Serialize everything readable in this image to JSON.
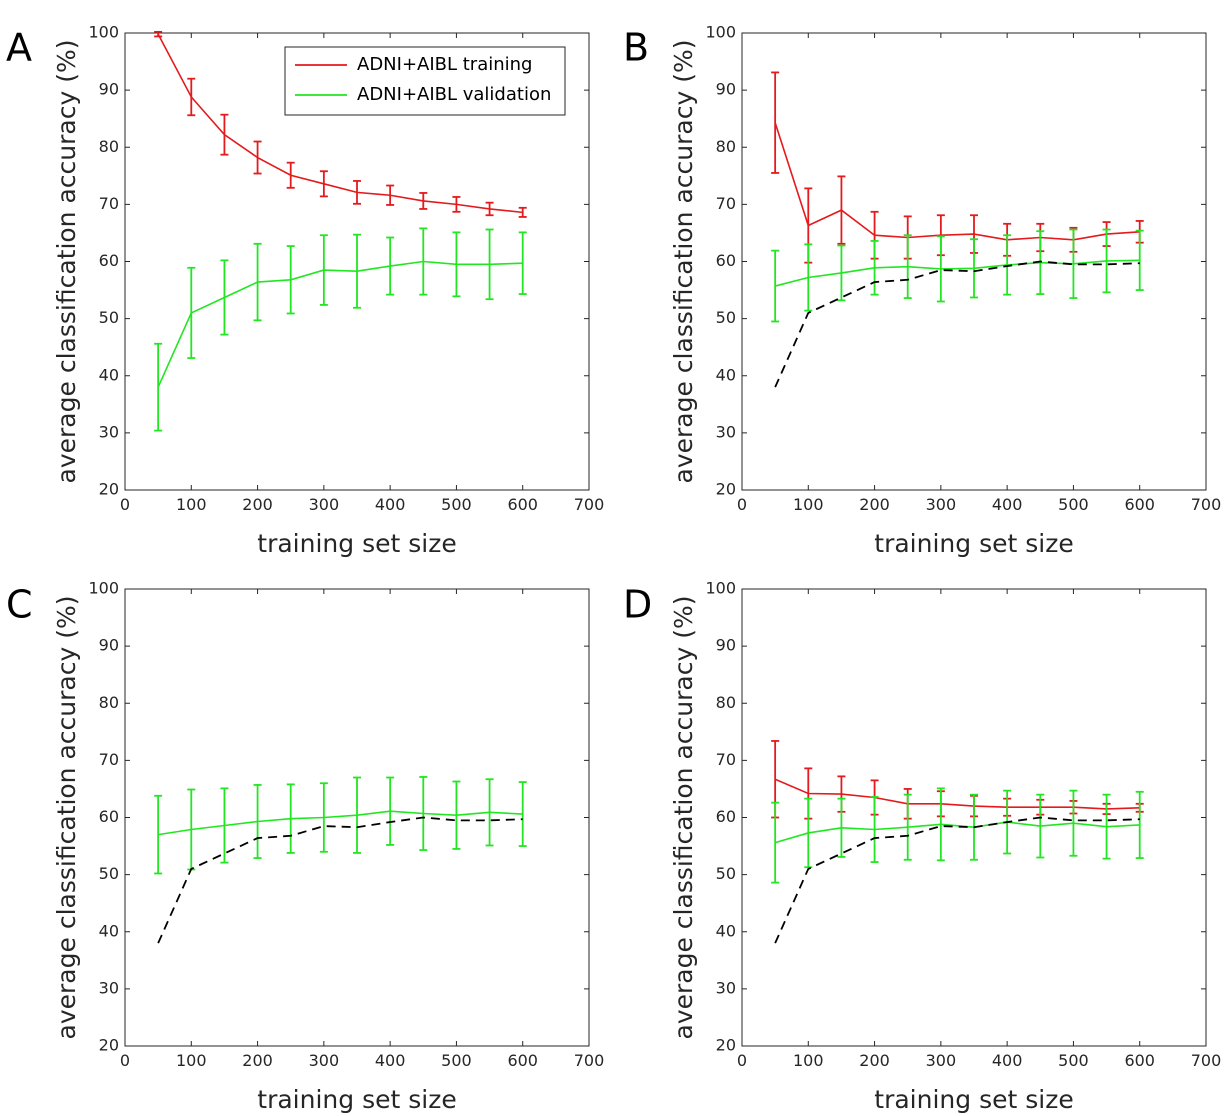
{
  "chart_data": [
    {
      "type": "line",
      "panel": "A",
      "xlabel": "training set size",
      "ylabel": "average classification accuracy (%)",
      "xlim": [
        0,
        700
      ],
      "ylim": [
        20,
        100
      ],
      "xticks": [
        0,
        100,
        200,
        300,
        400,
        500,
        600,
        700
      ],
      "yticks": [
        20,
        30,
        40,
        50,
        60,
        70,
        80,
        90,
        100
      ],
      "grid": false,
      "legend": {
        "placement": "top-right",
        "entries": [
          "ADNI+AIBL training",
          "ADNI+AIBL validation"
        ]
      },
      "x": [
        50,
        100,
        150,
        200,
        250,
        300,
        350,
        400,
        450,
        500,
        550,
        600
      ],
      "series": [
        {
          "name": "ADNI+AIBL training",
          "color": "#e41a1c",
          "style": "solid",
          "values": [
            99.8,
            88.8,
            82.2,
            78.2,
            75.1,
            73.6,
            72.1,
            71.6,
            70.6,
            70.0,
            69.2,
            68.6
          ],
          "errors": [
            0.4,
            3.2,
            3.5,
            2.8,
            2.2,
            2.2,
            2.0,
            1.7,
            1.4,
            1.3,
            1.1,
            0.8
          ]
        },
        {
          "name": "ADNI+AIBL validation",
          "color": "#22e622",
          "style": "solid",
          "values": [
            38.0,
            51.0,
            53.7,
            56.4,
            56.8,
            58.5,
            58.3,
            59.2,
            60.0,
            59.5,
            59.5,
            59.7
          ],
          "errors": [
            7.6,
            7.9,
            6.5,
            6.7,
            5.9,
            6.1,
            6.4,
            5.0,
            5.8,
            5.6,
            6.1,
            5.4
          ]
        }
      ]
    },
    {
      "type": "line",
      "panel": "B",
      "xlabel": "training set size",
      "ylabel": "average classification accuracy (%)",
      "xlim": [
        0,
        700
      ],
      "ylim": [
        20,
        100
      ],
      "xticks": [
        0,
        100,
        200,
        300,
        400,
        500,
        600,
        700
      ],
      "yticks": [
        20,
        30,
        40,
        50,
        60,
        70,
        80,
        90,
        100
      ],
      "grid": false,
      "x": [
        50,
        100,
        150,
        200,
        250,
        300,
        350,
        400,
        450,
        500,
        550,
        600
      ],
      "series": [
        {
          "color": "#e41a1c",
          "style": "solid",
          "values": [
            84.3,
            66.3,
            69.0,
            64.6,
            64.2,
            64.6,
            64.8,
            63.8,
            64.2,
            63.8,
            64.8,
            65.2
          ],
          "errors": [
            8.8,
            6.5,
            5.9,
            4.1,
            3.7,
            3.5,
            3.3,
            2.8,
            2.4,
            2.1,
            2.1,
            1.9
          ]
        },
        {
          "color": "#22e622",
          "style": "solid",
          "values": [
            55.7,
            57.2,
            58.0,
            58.9,
            59.1,
            58.7,
            58.8,
            59.4,
            59.8,
            59.6,
            60.1,
            60.2
          ],
          "errors": [
            6.2,
            5.8,
            4.8,
            4.7,
            5.5,
            5.7,
            5.1,
            5.2,
            5.5,
            6.0,
            5.5,
            5.2
          ]
        },
        {
          "color": "#000000",
          "style": "dashed",
          "values": [
            38.0,
            51.0,
            53.7,
            56.4,
            56.8,
            58.5,
            58.3,
            59.2,
            60.0,
            59.5,
            59.5,
            59.7
          ]
        }
      ]
    },
    {
      "type": "line",
      "panel": "C",
      "xlabel": "training set size",
      "ylabel": "average classification accuracy (%)",
      "xlim": [
        0,
        700
      ],
      "ylim": [
        20,
        100
      ],
      "xticks": [
        0,
        100,
        200,
        300,
        400,
        500,
        600,
        700
      ],
      "yticks": [
        20,
        30,
        40,
        50,
        60,
        70,
        80,
        90,
        100
      ],
      "grid": false,
      "x": [
        50,
        100,
        150,
        200,
        250,
        300,
        350,
        400,
        450,
        500,
        550,
        600
      ],
      "series": [
        {
          "color": "#22e622",
          "style": "solid",
          "values": [
            57.0,
            57.9,
            58.6,
            59.3,
            59.8,
            60.0,
            60.4,
            61.1,
            60.7,
            60.4,
            60.9,
            60.6
          ],
          "errors": [
            6.8,
            7.0,
            6.5,
            6.4,
            6.0,
            6.0,
            6.6,
            5.9,
            6.4,
            5.9,
            5.8,
            5.6
          ]
        },
        {
          "color": "#000000",
          "style": "dashed",
          "values": [
            38.0,
            51.0,
            53.7,
            56.4,
            56.8,
            58.5,
            58.3,
            59.2,
            60.0,
            59.5,
            59.5,
            59.7
          ]
        }
      ]
    },
    {
      "type": "line",
      "panel": "D",
      "xlabel": "training set size",
      "ylabel": "average classification accuracy (%)",
      "xlim": [
        0,
        700
      ],
      "ylim": [
        20,
        100
      ],
      "xticks": [
        0,
        100,
        200,
        300,
        400,
        500,
        600,
        700
      ],
      "yticks": [
        20,
        30,
        40,
        50,
        60,
        70,
        80,
        90,
        100
      ],
      "grid": false,
      "x": [
        50,
        100,
        150,
        200,
        250,
        300,
        350,
        400,
        450,
        500,
        550,
        600
      ],
      "series": [
        {
          "color": "#e41a1c",
          "style": "solid",
          "values": [
            66.7,
            64.2,
            64.1,
            63.5,
            62.4,
            62.4,
            62.0,
            61.8,
            61.8,
            61.8,
            61.5,
            61.7
          ],
          "errors": [
            6.7,
            4.4,
            3.1,
            3.0,
            2.6,
            2.2,
            1.8,
            1.5,
            1.3,
            1.1,
            0.9,
            0.7
          ]
        },
        {
          "color": "#22e622",
          "style": "solid",
          "values": [
            55.6,
            57.3,
            58.2,
            57.9,
            58.3,
            58.8,
            58.3,
            59.2,
            58.5,
            59.0,
            58.4,
            58.7
          ],
          "errors": [
            7.0,
            6.0,
            5.1,
            5.7,
            5.7,
            6.3,
            5.7,
            5.5,
            5.5,
            5.7,
            5.6,
            5.8
          ]
        },
        {
          "color": "#000000",
          "style": "dashed",
          "values": [
            38.0,
            51.0,
            53.7,
            56.4,
            56.8,
            58.5,
            58.3,
            59.2,
            60.0,
            59.5,
            59.5,
            59.7
          ]
        }
      ]
    }
  ]
}
